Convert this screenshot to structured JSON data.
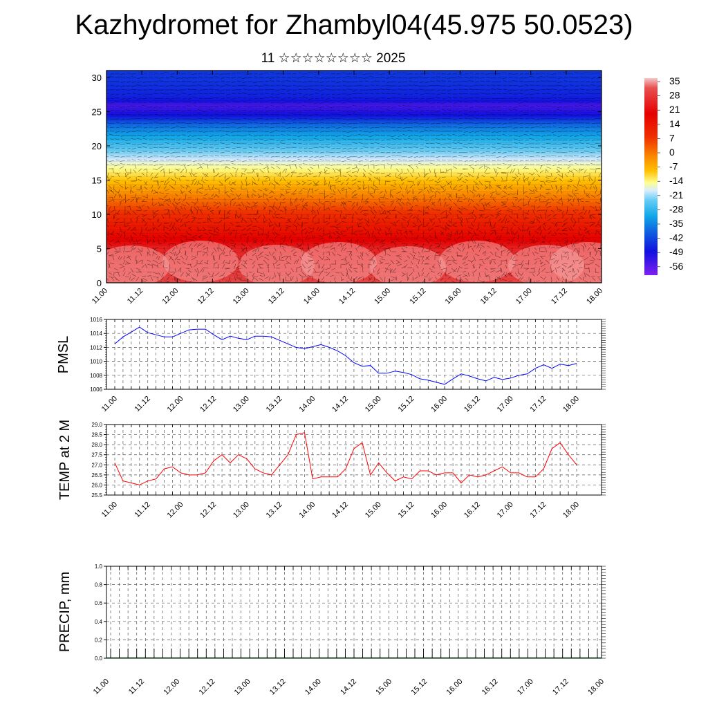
{
  "header": {
    "title": "Kazhydromet for Zhambyl04(45.975 50.0523)",
    "subtitle": "11 ☆☆☆☆☆☆☆☆ 2025"
  },
  "time_labels": [
    "11.00",
    "11.12",
    "12.00",
    "12.12",
    "13.00",
    "13.12",
    "14.00",
    "14.12",
    "15.00",
    "15.12",
    "16.00",
    "16.12",
    "17.00",
    "17.12",
    "18.00"
  ],
  "precip_time_labels": [
    "11.00",
    "11.12",
    "12.00",
    "12.12",
    "13.00",
    "13.12",
    "14.00",
    "14.12",
    "15.00",
    "15.12",
    "16.00",
    "16.12",
    "17.00",
    "17.12",
    "18.00"
  ],
  "chart_data": [
    {
      "type": "heatmap",
      "name": "cross-section",
      "y_ticks": [
        "0",
        "5",
        "10",
        "15",
        "20",
        "25",
        "30"
      ],
      "ylim": [
        0,
        31
      ],
      "colorbar_labels": [
        "35",
        "28",
        "21",
        "14",
        "7",
        "0",
        "-7",
        "-14",
        "-21",
        "-28",
        "-35",
        "-42",
        "-49",
        "-56"
      ],
      "colorbar_range": [
        -60,
        38
      ],
      "temperature_profile": [
        [
          0,
          30
        ],
        [
          5,
          27
        ],
        [
          10,
          15
        ],
        [
          13,
          5
        ],
        [
          15,
          -3
        ],
        [
          17,
          -10
        ],
        [
          19,
          -20
        ],
        [
          21,
          -30
        ],
        [
          23,
          -40
        ],
        [
          24.5,
          -52
        ],
        [
          26,
          -56
        ],
        [
          27,
          -50
        ],
        [
          29,
          -48
        ],
        [
          31,
          -47
        ]
      ]
    },
    {
      "type": "line",
      "name": "pmsl",
      "ylabel": "PMSL",
      "ylim": [
        1006,
        1016
      ],
      "y_ticks": [
        "1016",
        "1014",
        "1012",
        "1010",
        "1008",
        "1006"
      ],
      "x_ticks": [
        "11.00",
        "11.12",
        "12.00",
        "12.12",
        "13.00",
        "13.12",
        "14.00",
        "14.12",
        "15.00",
        "15.12",
        "16.00",
        "16.12",
        "17.00",
        "17.12",
        "18.00"
      ],
      "color": "#0000ff",
      "values": [
        1012.5,
        1013.5,
        1014.2,
        1014.9,
        1014.1,
        1013.8,
        1013.5,
        1013.5,
        1014.0,
        1014.5,
        1014.6,
        1014.6,
        1013.8,
        1013.1,
        1013.6,
        1013.3,
        1013.1,
        1013.6,
        1013.6,
        1013.5,
        1013.0,
        1012.5,
        1012.0,
        1011.8,
        1012.1,
        1012.4,
        1012.0,
        1011.5,
        1010.8,
        1009.8,
        1009.3,
        1009.4,
        1008.3,
        1008.3,
        1008.6,
        1008.4,
        1008.1,
        1007.5,
        1007.3,
        1007.0,
        1006.7,
        1007.5,
        1008.2,
        1007.9,
        1007.5,
        1007.2,
        1007.7,
        1007.4,
        1007.6,
        1008.0,
        1008.2,
        1009.0,
        1009.5,
        1009.0,
        1009.6,
        1009.4,
        1009.7
      ]
    },
    {
      "type": "line",
      "name": "temp-2m",
      "ylabel": "TEMP at 2 M",
      "ylim": [
        25.5,
        29.0
      ],
      "y_ticks": [
        "29.0",
        "28.5",
        "28.0",
        "27.5",
        "27.0",
        "26.5",
        "26.0",
        "25.5"
      ],
      "x_ticks": [
        "11.00",
        "11.12",
        "12.00",
        "12.12",
        "13.00",
        "13.12",
        "14.00",
        "14.12",
        "15.00",
        "15.12",
        "16.00",
        "16.12",
        "17.00",
        "17.12",
        "18.00"
      ],
      "color": "#ff0000",
      "values": [
        27.1,
        26.2,
        26.1,
        26.0,
        26.2,
        26.3,
        26.8,
        26.9,
        26.6,
        26.5,
        26.5,
        26.6,
        27.2,
        27.5,
        27.1,
        27.5,
        27.3,
        26.8,
        26.6,
        26.5,
        27.0,
        27.5,
        28.5,
        28.6,
        26.3,
        26.4,
        26.4,
        26.4,
        26.8,
        27.8,
        28.1,
        26.5,
        27.1,
        26.6,
        26.2,
        26.4,
        26.3,
        26.7,
        26.7,
        26.5,
        26.6,
        26.6,
        26.1,
        26.5,
        26.4,
        26.5,
        26.7,
        26.9,
        26.6,
        26.6,
        26.4,
        26.4,
        26.8,
        27.8,
        28.1,
        27.5,
        27.0
      ]
    },
    {
      "type": "bar",
      "name": "precip",
      "ylabel": "PRECIP, mm",
      "ylim": [
        0.0,
        1.0
      ],
      "y_ticks": [
        "1.0",
        "0.8",
        "0.6",
        "0.4",
        "0.2",
        "0.0"
      ],
      "x_ticks": [
        "11.00",
        "11.12",
        "12.00",
        "12.12",
        "13.00",
        "13.12",
        "14.00",
        "14.12",
        "15.00",
        "15.12",
        "16.00",
        "16.12",
        "17.00",
        "17.12",
        "18.00"
      ],
      "values": [
        0,
        0,
        0,
        0,
        0,
        0,
        0,
        0,
        0,
        0,
        0,
        0,
        0,
        0,
        0,
        0,
        0,
        0,
        0,
        0,
        0,
        0,
        0,
        0,
        0,
        0,
        0,
        0,
        0,
        0,
        0,
        0,
        0,
        0,
        0,
        0,
        0,
        0,
        0,
        0,
        0,
        0,
        0,
        0,
        0,
        0,
        0,
        0,
        0,
        0,
        0,
        0,
        0,
        0,
        0,
        0,
        0
      ]
    }
  ]
}
